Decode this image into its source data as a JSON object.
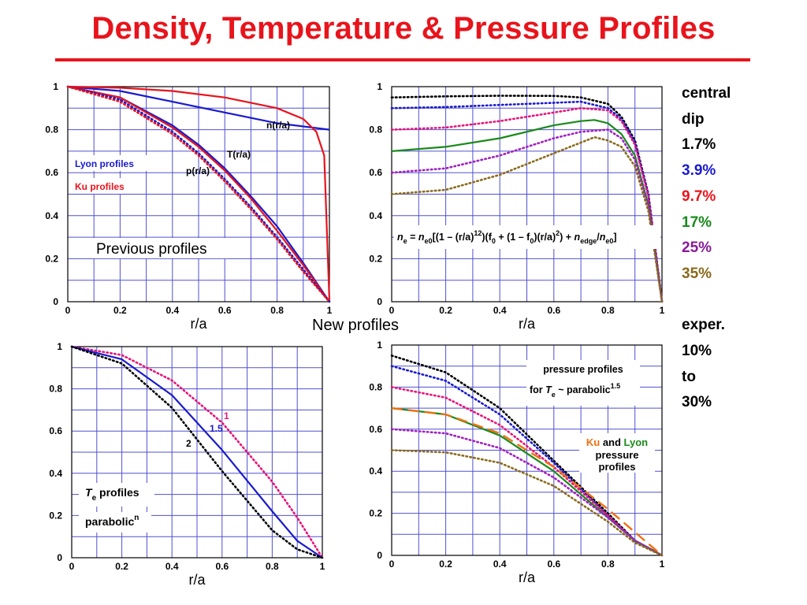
{
  "title": "Density, Temperature & Pressure  Profiles",
  "middle_label": "New profiles",
  "legend": {
    "lines": [
      {
        "text": "central",
        "color": "#000000"
      },
      {
        "text": "dip",
        "color": "#000000"
      },
      {
        "text": "1.7%",
        "color": "#000000"
      },
      {
        "text": "3.9%",
        "color": "#1a1acc"
      },
      {
        "text": "9.7%",
        "color": "#e8141c"
      },
      {
        "text": "17%",
        "color": "#1a8a1a"
      },
      {
        "text": "25%",
        "color": "#8a1a9a"
      },
      {
        "text": "35%",
        "color": "#8a6a1a"
      },
      {
        "text": "",
        "color": "#000000"
      },
      {
        "text": "exper.",
        "color": "#000000"
      },
      {
        "text": "10%",
        "color": "#000000"
      },
      {
        "text": "to",
        "color": "#000000"
      },
      {
        "text": "30%",
        "color": "#000000"
      }
    ]
  },
  "colors": {
    "black": "#000000",
    "blue": "#1a1acc",
    "red": "#e8141c",
    "green": "#1a8a1a",
    "magenta": "#e8147a",
    "purple": "#a020c0",
    "olive": "#8a6a1a",
    "orange": "#f07010",
    "grid": "#5050d0"
  },
  "chart_data": [
    {
      "type": "line",
      "xlabel": "r/a",
      "xlim": [
        0,
        1
      ],
      "ylim": [
        0,
        1
      ],
      "xticks": [
        "0",
        "0.2",
        "0.4",
        "0.6",
        "0.8",
        "1"
      ],
      "yticks": [
        "0",
        "0.2",
        "0.4",
        "0.6",
        "0.8",
        "1"
      ],
      "annotations": {
        "lyon": "Lyon profiles",
        "ku": "Ku profiles",
        "previous": "Previous profiles",
        "n_label": "n(r/a)",
        "T_label": "T(r/a)",
        "p_label": "p(r/a)"
      },
      "series": [
        {
          "name": "n(r/a)",
          "color": "blue",
          "style": "solid",
          "x": [
            0,
            0.2,
            0.4,
            0.6,
            0.8,
            1.0
          ],
          "y": [
            1.0,
            0.98,
            0.93,
            0.88,
            0.83,
            0.8
          ]
        },
        {
          "name": "n(r/a)",
          "color": "red",
          "style": "solid",
          "x": [
            0,
            0.2,
            0.4,
            0.6,
            0.8,
            0.9,
            0.95,
            0.98,
            1.0
          ],
          "y": [
            1.0,
            0.995,
            0.98,
            0.95,
            0.9,
            0.85,
            0.79,
            0.68,
            0.0
          ]
        },
        {
          "name": "T(r/a)",
          "color": "blue",
          "style": "solid",
          "x": [
            0,
            0.2,
            0.4,
            0.5,
            0.6,
            0.7,
            0.8,
            0.9,
            1.0
          ],
          "y": [
            1.0,
            0.95,
            0.82,
            0.73,
            0.62,
            0.49,
            0.35,
            0.18,
            0.0
          ]
        },
        {
          "name": "T(r/a)",
          "color": "red",
          "style": "solid",
          "x": [
            0,
            0.2,
            0.4,
            0.5,
            0.6,
            0.7,
            0.8,
            0.9,
            1.0
          ],
          "y": [
            1.0,
            0.95,
            0.81,
            0.72,
            0.61,
            0.48,
            0.33,
            0.17,
            0.0
          ]
        },
        {
          "name": "p(r/a)",
          "color": "blue",
          "style": "dotted",
          "x": [
            0,
            0.2,
            0.4,
            0.5,
            0.6,
            0.7,
            0.8,
            0.9,
            1.0
          ],
          "y": [
            1.0,
            0.94,
            0.79,
            0.69,
            0.57,
            0.44,
            0.3,
            0.15,
            0.0
          ]
        },
        {
          "name": "p(r/a)",
          "color": "red",
          "style": "dotted",
          "x": [
            0,
            0.2,
            0.4,
            0.5,
            0.6,
            0.7,
            0.8,
            0.9,
            1.0
          ],
          "y": [
            1.0,
            0.93,
            0.78,
            0.68,
            0.56,
            0.43,
            0.29,
            0.14,
            0.0
          ]
        }
      ]
    },
    {
      "type": "line",
      "xlabel": "r/a",
      "xlim": [
        0,
        1
      ],
      "ylim": [
        0,
        1
      ],
      "xticks": [
        "0",
        "0.2",
        "0.4",
        "0.6",
        "0.8",
        "1"
      ],
      "yticks": [
        "0",
        "0.2",
        "0.4",
        "0.6",
        "0.8",
        "1"
      ],
      "formula": "n_e = n_e0[(1 – (r/a)^12)(f_0 + (1 – f_0)(r/a)^2) + n_edge/n_e0]",
      "series": [
        {
          "name": "1.7%",
          "color": "black",
          "style": "dotted",
          "x": [
            0,
            0.2,
            0.4,
            0.6,
            0.7,
            0.8,
            0.85,
            0.9,
            0.95,
            1.0
          ],
          "y": [
            0.95,
            0.955,
            0.958,
            0.957,
            0.95,
            0.92,
            0.86,
            0.75,
            0.5,
            0.0
          ]
        },
        {
          "name": "3.9%",
          "color": "blue",
          "style": "dotted",
          "x": [
            0,
            0.2,
            0.4,
            0.6,
            0.7,
            0.8,
            0.85,
            0.9,
            0.95,
            1.0
          ],
          "y": [
            0.9,
            0.905,
            0.915,
            0.925,
            0.93,
            0.9,
            0.85,
            0.74,
            0.5,
            0.0
          ]
        },
        {
          "name": "9.7%",
          "color": "magenta",
          "style": "dotted",
          "x": [
            0,
            0.2,
            0.4,
            0.6,
            0.7,
            0.8,
            0.85,
            0.9,
            0.95,
            1.0
          ],
          "y": [
            0.8,
            0.81,
            0.84,
            0.88,
            0.9,
            0.89,
            0.84,
            0.73,
            0.49,
            0.0
          ]
        },
        {
          "name": "17%",
          "color": "green",
          "style": "solid",
          "x": [
            0,
            0.2,
            0.4,
            0.6,
            0.7,
            0.75,
            0.8,
            0.85,
            0.9,
            0.95,
            1.0
          ],
          "y": [
            0.7,
            0.72,
            0.76,
            0.82,
            0.84,
            0.845,
            0.83,
            0.78,
            0.68,
            0.45,
            0.0
          ]
        },
        {
          "name": "25%",
          "color": "purple",
          "style": "dotted",
          "x": [
            0,
            0.2,
            0.4,
            0.6,
            0.7,
            0.8,
            0.85,
            0.9,
            0.95,
            1.0
          ],
          "y": [
            0.6,
            0.62,
            0.68,
            0.76,
            0.79,
            0.8,
            0.76,
            0.66,
            0.44,
            0.0
          ]
        },
        {
          "name": "35%",
          "color": "olive",
          "style": "dotted",
          "x": [
            0,
            0.2,
            0.4,
            0.6,
            0.7,
            0.75,
            0.8,
            0.85,
            0.9,
            0.95,
            1.0
          ],
          "y": [
            0.5,
            0.52,
            0.59,
            0.69,
            0.74,
            0.765,
            0.75,
            0.72,
            0.63,
            0.42,
            0.0
          ]
        }
      ]
    },
    {
      "type": "line",
      "xlabel": "r/a",
      "xlim": [
        0,
        1
      ],
      "ylim": [
        0,
        1
      ],
      "xticks": [
        "0",
        "0.2",
        "0.4",
        "0.6",
        "0.8",
        "1"
      ],
      "yticks": [
        "0",
        "0.2",
        "0.4",
        "0.6",
        "0.8",
        "1"
      ],
      "annotations": {
        "Te": "T",
        "e_sub": "e",
        "profiles": " profiles",
        "parabolic": "parabolic",
        "n_sup": "n",
        "n1": "1",
        "n15": "1.5",
        "n2": "2"
      },
      "series": [
        {
          "name": "1",
          "color": "magenta",
          "style": "dotted",
          "x": [
            0,
            0.2,
            0.4,
            0.6,
            0.8,
            0.9,
            1.0
          ],
          "y": [
            1.0,
            0.96,
            0.84,
            0.64,
            0.36,
            0.19,
            0.0
          ]
        },
        {
          "name": "1.5",
          "color": "blue",
          "style": "solid",
          "x": [
            0,
            0.2,
            0.4,
            0.6,
            0.8,
            0.9,
            1.0
          ],
          "y": [
            1.0,
            0.94,
            0.77,
            0.51,
            0.22,
            0.08,
            0.0
          ]
        },
        {
          "name": "2",
          "color": "black",
          "style": "dotted",
          "x": [
            0,
            0.2,
            0.4,
            0.6,
            0.8,
            0.9,
            1.0
          ],
          "y": [
            1.0,
            0.92,
            0.71,
            0.41,
            0.13,
            0.04,
            0.0
          ]
        }
      ]
    },
    {
      "type": "line",
      "xlabel": "r/a",
      "xlim": [
        0,
        1
      ],
      "ylim": [
        0,
        1
      ],
      "xticks": [
        "0",
        "0.2",
        "0.4",
        "0.6",
        "0.8",
        "1"
      ],
      "yticks": [
        "0",
        "0.2",
        "0.4",
        "0.6",
        "0.8",
        "1"
      ],
      "annotations": {
        "box_line1": "pressure profiles",
        "box_for": "for ",
        "box_T": "T",
        "box_e": "e",
        "box_tilde": " ~ parabolic",
        "box_sup": "1.5",
        "ku": "Ku",
        "and": " and ",
        "lyon": "Lyon",
        "line2": "pressure",
        "line3": "profiles"
      },
      "series": [
        {
          "name": "1.7%",
          "color": "black",
          "style": "dotted",
          "x": [
            0,
            0.2,
            0.4,
            0.6,
            0.8,
            0.9,
            1.0
          ],
          "y": [
            0.95,
            0.87,
            0.7,
            0.45,
            0.2,
            0.07,
            0.0
          ]
        },
        {
          "name": "3.9%",
          "color": "blue",
          "style": "dotted",
          "x": [
            0,
            0.2,
            0.4,
            0.6,
            0.8,
            0.9,
            1.0
          ],
          "y": [
            0.9,
            0.83,
            0.67,
            0.44,
            0.19,
            0.07,
            0.0
          ]
        },
        {
          "name": "9.7%",
          "color": "magenta",
          "style": "dotted",
          "x": [
            0,
            0.2,
            0.4,
            0.6,
            0.8,
            0.9,
            1.0
          ],
          "y": [
            0.8,
            0.75,
            0.62,
            0.42,
            0.19,
            0.07,
            0.0
          ]
        },
        {
          "name": "17%",
          "color": "green",
          "style": "solid",
          "x": [
            0,
            0.2,
            0.4,
            0.6,
            0.8,
            0.9,
            1.0
          ],
          "y": [
            0.7,
            0.67,
            0.57,
            0.4,
            0.18,
            0.07,
            0.0
          ]
        },
        {
          "name": "Ku",
          "color": "orange",
          "style": "dashed",
          "x": [
            0,
            0.2,
            0.4,
            0.6,
            0.8,
            0.9,
            1.0
          ],
          "y": [
            0.7,
            0.67,
            0.58,
            0.42,
            0.22,
            0.11,
            0.0
          ]
        },
        {
          "name": "25%",
          "color": "purple",
          "style": "dotted",
          "x": [
            0,
            0.2,
            0.4,
            0.6,
            0.8,
            0.9,
            1.0
          ],
          "y": [
            0.6,
            0.58,
            0.51,
            0.37,
            0.18,
            0.07,
            0.0
          ]
        },
        {
          "name": "35%",
          "color": "olive",
          "style": "dotted",
          "x": [
            0,
            0.2,
            0.4,
            0.6,
            0.8,
            0.9,
            1.0
          ],
          "y": [
            0.5,
            0.49,
            0.44,
            0.33,
            0.16,
            0.06,
            0.0
          ]
        }
      ]
    }
  ]
}
